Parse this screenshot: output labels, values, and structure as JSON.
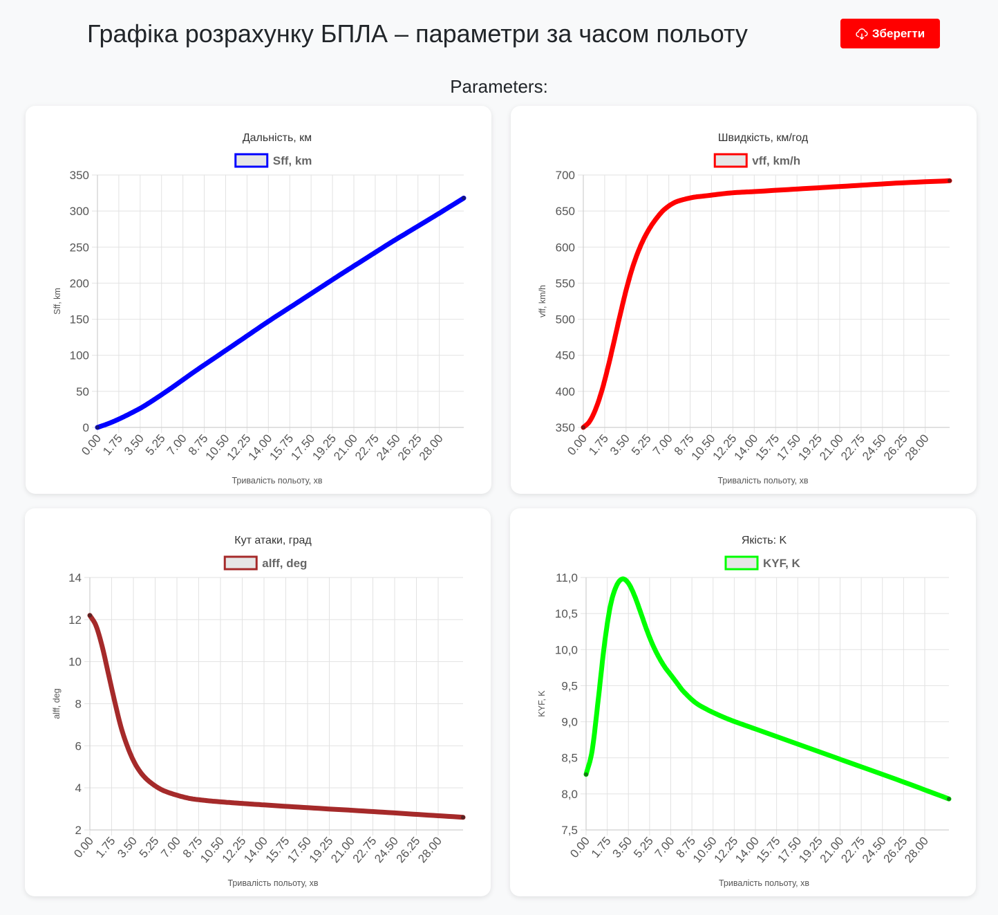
{
  "header": {
    "title": "Графіка розрахунку БПЛА – параметри за часом польоту",
    "save_label": "Зберегти",
    "save_icon": "cloud-download-icon",
    "accent_color": "#ff0000"
  },
  "section_title": "Parameters:",
  "x_ticks": [
    "0.00",
    "1.75",
    "3.50",
    "5.25",
    "7.00",
    "8.75",
    "10.50",
    "12.25",
    "14.00",
    "15.75",
    "17.50",
    "19.25",
    "21.00",
    "22.75",
    "24.50",
    "26.25",
    "28.00"
  ],
  "chart_data": [
    {
      "type": "line",
      "title": "Дальність, км",
      "series": [
        {
          "name": "Sff, km",
          "color": "#0000ff",
          "x": [
            0,
            1,
            2,
            3,
            3.5,
            4,
            5,
            6,
            7,
            8,
            10,
            12,
            14,
            16,
            18,
            20,
            22,
            24,
            26,
            28,
            30
          ],
          "y": [
            0,
            6,
            13.5,
            22,
            26.5,
            31.5,
            42.5,
            54,
            66,
            78,
            101,
            124,
            147,
            169,
            191,
            213,
            234.5,
            256,
            276.5,
            297,
            318
          ]
        }
      ],
      "xlabel": "Тривалість польоту, хв",
      "ylabel": "Sff, km",
      "x_range": [
        0,
        30
      ],
      "ylim": [
        0,
        350
      ],
      "y_ticks": [
        "0",
        "50",
        "100",
        "150",
        "200",
        "250",
        "300",
        "350"
      ],
      "grid": true,
      "legend": "top"
    },
    {
      "type": "line",
      "title": "Швидкість, км/год",
      "series": [
        {
          "name": "vff, km/h",
          "color": "#ff0000",
          "x": [
            0,
            0.5,
            1,
            1.5,
            2,
            2.5,
            3,
            3.5,
            4,
            4.5,
            5,
            5.5,
            6,
            6.5,
            7,
            7.5,
            8,
            9,
            10,
            12,
            14,
            18,
            22,
            26,
            30
          ],
          "y": [
            350,
            358,
            375,
            400,
            432,
            468,
            505,
            540,
            570,
            594,
            613,
            628,
            640,
            650,
            657,
            662,
            665,
            669,
            671,
            675,
            677,
            681,
            685,
            689,
            692
          ]
        }
      ],
      "xlabel": "Тривалість польоту, хв",
      "ylabel": "vff, km/h",
      "x_range": [
        0,
        30
      ],
      "ylim": [
        350,
        700
      ],
      "y_ticks": [
        "350",
        "400",
        "450",
        "500",
        "550",
        "600",
        "650",
        "700"
      ],
      "grid": true,
      "legend": "top"
    },
    {
      "type": "line",
      "title": "Кут атаки, град",
      "series": [
        {
          "name": "alff, deg",
          "color": "#a52a2a",
          "x": [
            0,
            0.5,
            1,
            1.5,
            2,
            2.5,
            3,
            3.5,
            4,
            4.5,
            5,
            5.5,
            6,
            7,
            8,
            9,
            10,
            12,
            14,
            18,
            22,
            26,
            30
          ],
          "y": [
            12.2,
            11.7,
            10.7,
            9.4,
            8.1,
            6.9,
            6.0,
            5.3,
            4.8,
            4.45,
            4.2,
            4.0,
            3.85,
            3.65,
            3.5,
            3.42,
            3.36,
            3.27,
            3.19,
            3.04,
            2.9,
            2.75,
            2.6
          ]
        }
      ],
      "xlabel": "Тривалість польоту, хв",
      "ylabel": "alff, deg",
      "x_range": [
        0,
        30
      ],
      "ylim": [
        2,
        14
      ],
      "y_ticks": [
        "2",
        "4",
        "6",
        "8",
        "10",
        "12",
        "14"
      ],
      "grid": true,
      "legend": "top"
    },
    {
      "type": "line",
      "title": "Якість: K",
      "series": [
        {
          "name": "KYF, K",
          "color": "#00ff00",
          "x": [
            0,
            0.5,
            1,
            1.5,
            2,
            2.5,
            3,
            3.5,
            4,
            4.5,
            5,
            5.5,
            6,
            6.5,
            7,
            7.5,
            8,
            9,
            10,
            11,
            12,
            14,
            18,
            22,
            26,
            30
          ],
          "y": [
            8.27,
            8.6,
            9.3,
            10.05,
            10.6,
            10.88,
            10.98,
            10.92,
            10.75,
            10.52,
            10.28,
            10.07,
            9.9,
            9.76,
            9.65,
            9.54,
            9.43,
            9.27,
            9.17,
            9.09,
            9.02,
            8.9,
            8.66,
            8.42,
            8.18,
            7.93
          ]
        }
      ],
      "xlabel": "Тривалість польоту, хв",
      "ylabel": "KYF, K",
      "x_range": [
        0,
        30
      ],
      "ylim": [
        7.5,
        11.0
      ],
      "y_ticks": [
        "7,5",
        "8,0",
        "8,5",
        "9,0",
        "9,5",
        "10,0",
        "10,5",
        "11,0"
      ],
      "grid": true,
      "legend": "top"
    }
  ]
}
